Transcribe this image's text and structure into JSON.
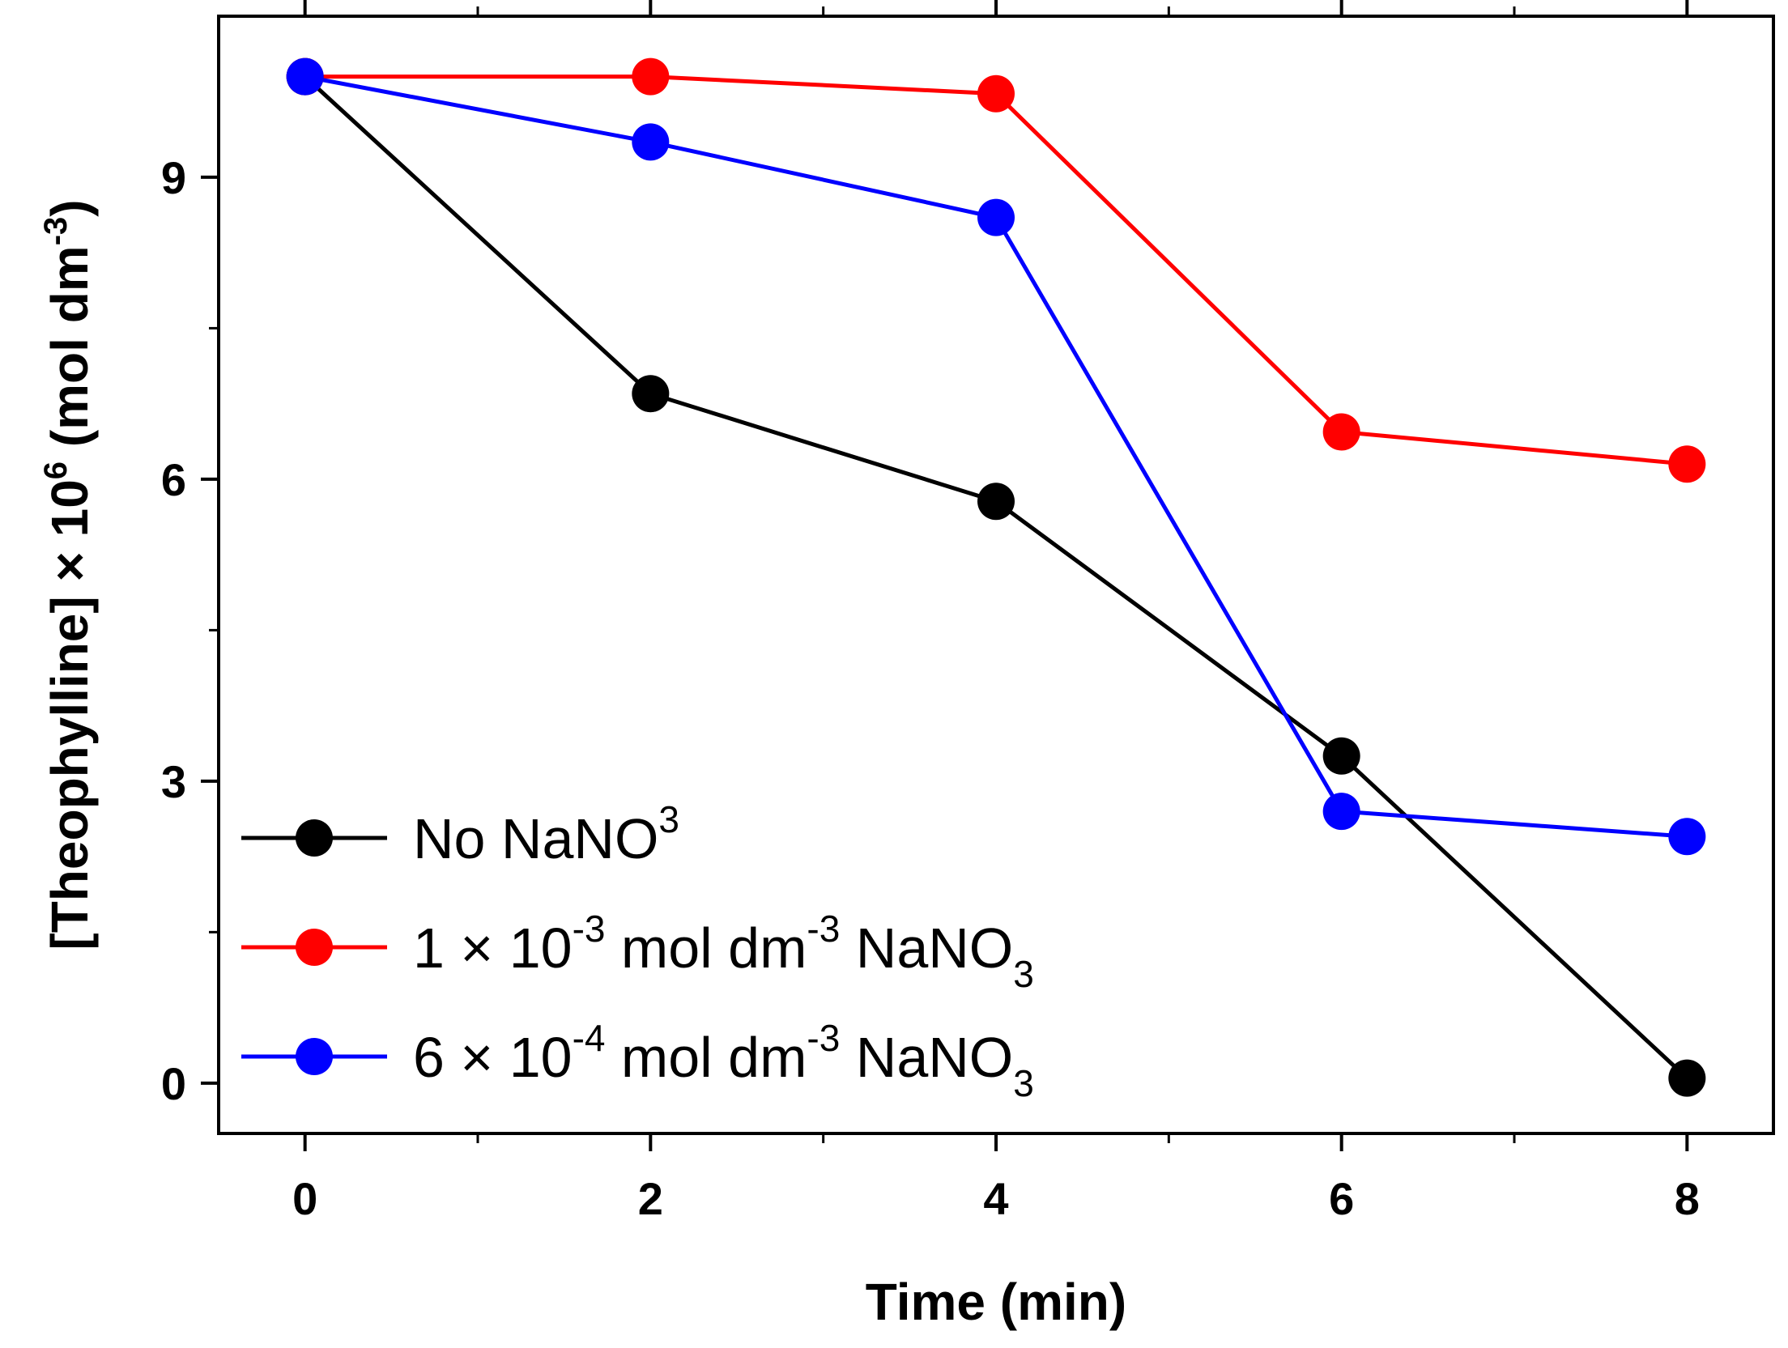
{
  "chart_data": {
    "type": "line",
    "title": "",
    "xlabel": "Time (min)",
    "ylabel": {
      "prefix": "[Theophylline] × 10",
      "exp": "6",
      "unit_open": " (mol dm",
      "unit_exp": "-3",
      "unit_close": ")"
    },
    "xlim": [
      -0.5,
      8.5
    ],
    "ylim": [
      -0.5,
      10.6
    ],
    "xticks": [
      0,
      2,
      4,
      6,
      8
    ],
    "xminorticks": [
      1,
      3,
      5,
      7
    ],
    "yticks": [
      0,
      3,
      6,
      9
    ],
    "yminorticks": [
      1.5,
      4.5,
      7.5
    ],
    "grid": false,
    "legend_position": "bottom-left",
    "series": [
      {
        "name": "No NaNO3",
        "legend": [
          "No NaNO",
          "3",
          "",
          "",
          "",
          ""
        ],
        "color": "#000000",
        "x": [
          0,
          2,
          4,
          6,
          8
        ],
        "values": [
          10.0,
          6.85,
          5.78,
          3.25,
          0.05
        ]
      },
      {
        "name": "1 × 10-3 mol dm-3 NaNO3",
        "legend": [
          "1 × 10",
          "-3",
          " mol dm",
          "-3",
          " NaNO",
          "3"
        ],
        "color": "#ff0000",
        "x": [
          0,
          2,
          4,
          6,
          8
        ],
        "values": [
          10.0,
          10.0,
          9.83,
          6.47,
          6.15
        ]
      },
      {
        "name": "6 × 10-4 mol dm-3 NaNO3",
        "legend": [
          "6 × 10",
          "-4",
          " mol dm",
          "-3",
          " NaNO",
          "3"
        ],
        "color": "#0000ff",
        "x": [
          0,
          2,
          4,
          6,
          8
        ],
        "values": [
          10.0,
          9.35,
          8.6,
          2.7,
          2.45
        ]
      }
    ]
  }
}
